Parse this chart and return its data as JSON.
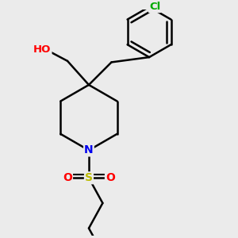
{
  "background_color": "#ebebeb",
  "atom_colors": {
    "C": "#000000",
    "N": "#0000ee",
    "O": "#ff0000",
    "S": "#bbbb00",
    "Cl": "#00aa00",
    "H": "#555555"
  },
  "bond_color": "#000000",
  "bond_width": 1.8,
  "font_size": 9.5
}
